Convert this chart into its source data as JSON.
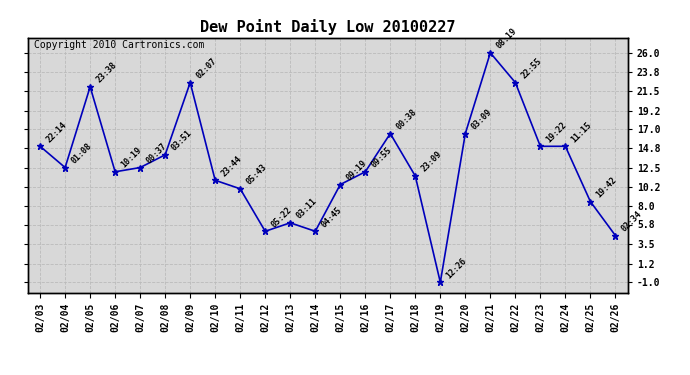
{
  "title": "Dew Point Daily Low 20100227",
  "copyright": "Copyright 2010 Cartronics.com",
  "dates": [
    "02/03",
    "02/04",
    "02/05",
    "02/06",
    "02/07",
    "02/08",
    "02/09",
    "02/10",
    "02/11",
    "02/12",
    "02/13",
    "02/14",
    "02/15",
    "02/16",
    "02/17",
    "02/18",
    "02/19",
    "02/20",
    "02/21",
    "02/22",
    "02/23",
    "02/24",
    "02/25",
    "02/26"
  ],
  "values": [
    15.0,
    12.5,
    22.0,
    12.0,
    12.5,
    14.0,
    22.5,
    11.0,
    10.0,
    5.0,
    6.0,
    5.0,
    10.5,
    12.0,
    16.5,
    11.5,
    -1.0,
    16.5,
    26.0,
    22.5,
    15.0,
    15.0,
    8.5,
    4.5
  ],
  "labels": [
    "22:14",
    "01:08",
    "23:38",
    "10:19",
    "00:37",
    "03:51",
    "02:07",
    "23:44",
    "05:43",
    "05:22",
    "03:11",
    "04:45",
    "09:19",
    "09:55",
    "00:38",
    "23:09",
    "12:26",
    "03:09",
    "08:19",
    "22:55",
    "19:22",
    "11:15",
    "19:42",
    "02:34"
  ],
  "yticks": [
    -1.0,
    1.2,
    3.5,
    5.8,
    8.0,
    10.2,
    12.5,
    14.8,
    17.0,
    19.2,
    21.5,
    23.8,
    26.0
  ],
  "ylim": [
    -2.2,
    27.8
  ],
  "line_color": "#0000bb",
  "marker_color": "#0000bb",
  "bg_color": "#ffffff",
  "plot_bg_color": "#d8d8d8",
  "grid_color": "#bbbbbb",
  "title_fontsize": 11,
  "label_fontsize": 6,
  "tick_fontsize": 7,
  "copyright_fontsize": 7
}
